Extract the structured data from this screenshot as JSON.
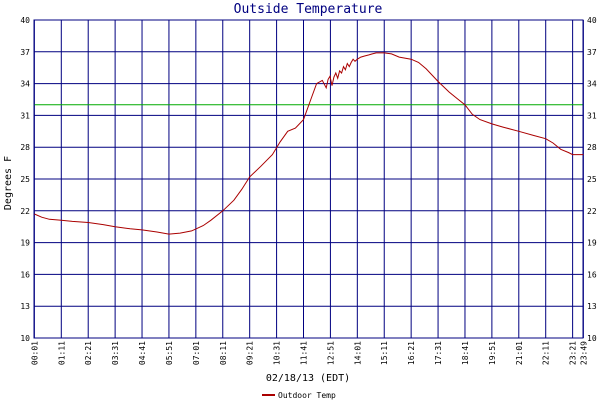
{
  "chart_data": {
    "type": "line",
    "title": "Outside Temperature",
    "ylabel": "Degrees F",
    "xlabel": "02/18/13 (EDT)",
    "ylim": [
      10,
      40
    ],
    "xlim": [
      0,
      1428
    ],
    "y_ticks": [
      10,
      13,
      16,
      19,
      22,
      25,
      28,
      31,
      34,
      37,
      40
    ],
    "x_ticks": [
      {
        "label": "00:01",
        "min": 1
      },
      {
        "label": "01:11",
        "min": 71
      },
      {
        "label": "02:21",
        "min": 141
      },
      {
        "label": "03:31",
        "min": 211
      },
      {
        "label": "04:41",
        "min": 281
      },
      {
        "label": "05:51",
        "min": 351
      },
      {
        "label": "07:01",
        "min": 421
      },
      {
        "label": "08:11",
        "min": 491
      },
      {
        "label": "09:21",
        "min": 561
      },
      {
        "label": "10:31",
        "min": 631
      },
      {
        "label": "11:41",
        "min": 701
      },
      {
        "label": "12:51",
        "min": 771
      },
      {
        "label": "14:01",
        "min": 841
      },
      {
        "label": "15:11",
        "min": 911
      },
      {
        "label": "16:21",
        "min": 981
      },
      {
        "label": "17:31",
        "min": 1051
      },
      {
        "label": "18:41",
        "min": 1121
      },
      {
        "label": "19:51",
        "min": 1191
      },
      {
        "label": "21:01",
        "min": 1261
      },
      {
        "label": "22:11",
        "min": 1331
      },
      {
        "label": "23:21",
        "min": 1401
      },
      {
        "label": "23:49",
        "min": 1429
      }
    ],
    "reference_line": {
      "y": 32,
      "color": "#00aa00"
    },
    "grid": true,
    "legend_position": "bottom",
    "series": [
      {
        "name": "Outdoor Temp",
        "color": "#aa0000",
        "x": [
          1,
          20,
          40,
          71,
          100,
          141,
          180,
          211,
          250,
          281,
          320,
          351,
          380,
          410,
          440,
          460,
          491,
          520,
          540,
          561,
          590,
          620,
          640,
          660,
          680,
          701,
          720,
          735,
          750,
          760,
          765,
          770,
          775,
          780,
          785,
          790,
          795,
          800,
          805,
          810,
          815,
          820,
          825,
          830,
          835,
          841,
          850,
          860,
          870,
          880,
          890,
          900,
          911,
          930,
          950,
          981,
          1000,
          1020,
          1051,
          1080,
          1100,
          1121,
          1140,
          1160,
          1191,
          1220,
          1261,
          1300,
          1331,
          1350,
          1370,
          1390,
          1401,
          1429
        ],
        "y": [
          21.7,
          21.4,
          21.2,
          21.1,
          21.0,
          20.9,
          20.7,
          20.5,
          20.3,
          20.2,
          20.0,
          19.8,
          19.9,
          20.1,
          20.6,
          21.1,
          22.0,
          23.0,
          24.0,
          25.2,
          26.2,
          27.3,
          28.5,
          29.5,
          29.8,
          30.6,
          32.5,
          34.0,
          34.3,
          33.6,
          34.4,
          34.7,
          33.8,
          34.6,
          35.0,
          34.5,
          35.2,
          35.0,
          35.6,
          35.3,
          35.9,
          35.6,
          36.0,
          36.3,
          36.1,
          36.3,
          36.5,
          36.6,
          36.7,
          36.8,
          36.9,
          36.9,
          36.9,
          36.8,
          36.5,
          36.3,
          36.0,
          35.4,
          34.2,
          33.2,
          32.6,
          32.0,
          31.1,
          30.6,
          30.2,
          29.9,
          29.5,
          29.1,
          28.8,
          28.4,
          27.8,
          27.5,
          27.3,
          27.3
        ]
      }
    ]
  }
}
